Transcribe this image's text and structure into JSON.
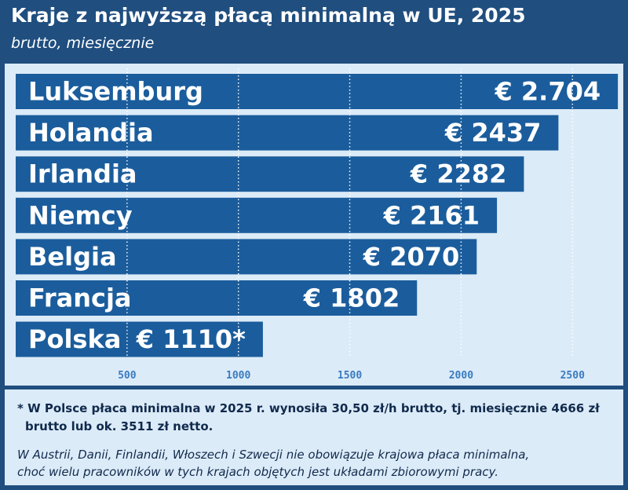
{
  "header": {
    "title": "Kraje z najwyższą płacą minimalną w UE, 2025",
    "subtitle": "brutto, miesięcznie"
  },
  "chart_data": {
    "type": "bar",
    "orientation": "horizontal",
    "categories": [
      "Luksemburg",
      "Holandia",
      "Irlandia",
      "Niemcy",
      "Belgia",
      "Francja",
      "Polska"
    ],
    "values": [
      2704,
      2437,
      2282,
      2161,
      2070,
      1802,
      1110
    ],
    "value_labels": [
      "€ 2.704",
      "€ 2437",
      "€ 2282",
      "€ 2161",
      "€ 2070",
      "€ 1802",
      "€ 1110*"
    ],
    "xticks": [
      500,
      1000,
      1500,
      2000,
      2500
    ],
    "xtick_labels": [
      "500",
      "1000",
      "1500",
      "2000",
      "2500"
    ],
    "xlim": [
      0,
      2704
    ],
    "grid": "vertical-dotted",
    "bar_color": "#1b5d9c",
    "label_color": "#ffffff",
    "tick_color": "#3a7cc0"
  },
  "notes": {
    "footnote_line1": "* W Polsce płaca minimalna w 2025 r. wynosiła 30,50 zł/h brutto, tj. miesięcznie 4666 zł",
    "footnote_line2": "brutto lub ok. 3511 zł netto.",
    "note_line1": "W Austrii, Danii, Finlandii, Włoszech i Szwecji nie obowiązuje krajowa płaca minimalna,",
    "note_line2": "choć wielu pracowników w tych krajach objętych jest układami zbiorowymi pracy."
  }
}
